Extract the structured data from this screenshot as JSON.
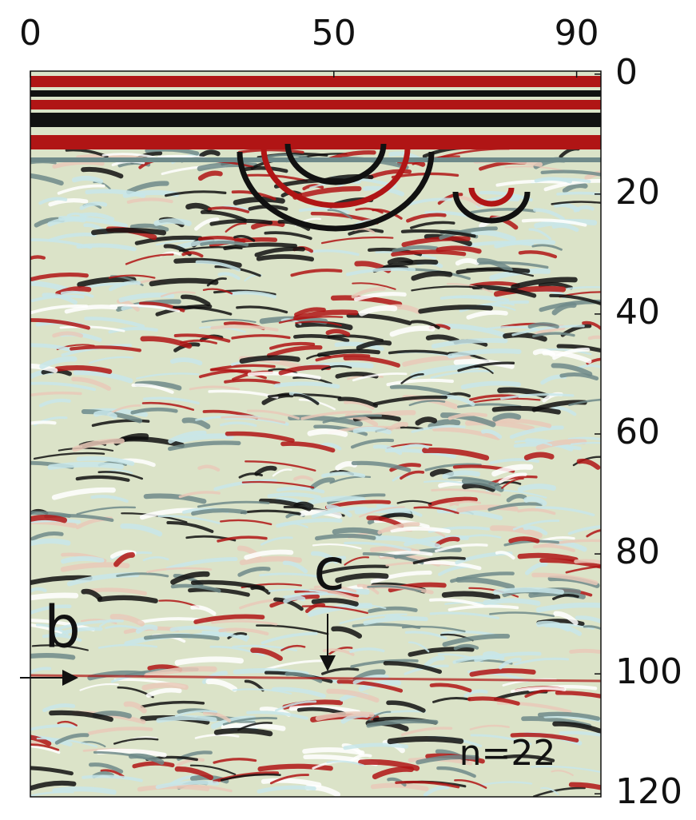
{
  "chart_data": {
    "type": "heatmap",
    "xlim": [
      0,
      94
    ],
    "xticks": [
      0,
      50,
      90
    ],
    "ylim": [
      -0.5,
      120.5
    ],
    "yticks": [
      0,
      20,
      40,
      60,
      80,
      100,
      120
    ],
    "annotations": [
      "b",
      "c",
      "n=22"
    ]
  }
}
